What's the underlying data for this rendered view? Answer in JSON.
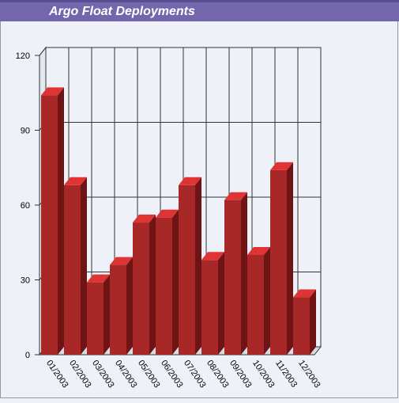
{
  "chart_data": {
    "type": "bar3d",
    "title": "Argo Float Deployments",
    "categories": [
      "01/2003",
      "02/2003",
      "03/2003",
      "04/2003",
      "05/2003",
      "06/2003",
      "07/2003",
      "08/2003",
      "09/2003",
      "10/2003",
      "11/2003",
      "12/2003"
    ],
    "values": [
      104,
      68,
      29,
      36,
      53,
      55,
      68,
      38,
      62,
      40,
      74,
      23
    ],
    "color": "#a82828",
    "ylim": [
      0,
      120
    ],
    "yticks": [
      0,
      30,
      60,
      90,
      120
    ],
    "grid": true
  }
}
